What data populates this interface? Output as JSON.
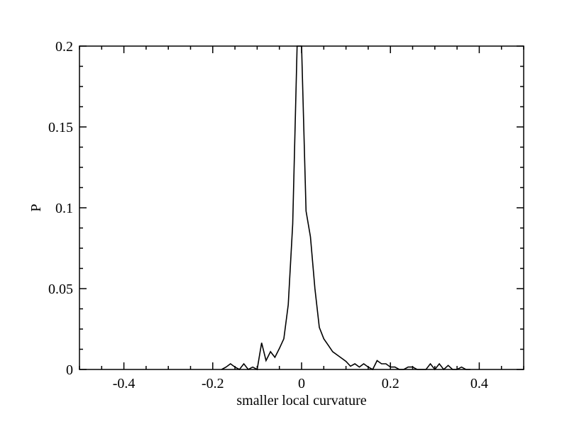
{
  "chart_data": {
    "type": "line",
    "title": "",
    "xlabel": "smaller local curvature",
    "ylabel": "P",
    "xlim": [
      -0.5,
      0.5
    ],
    "ylim": [
      0,
      0.2
    ],
    "x_ticks": [
      -0.4,
      -0.2,
      0,
      0.2,
      0.4
    ],
    "x_tick_labels": [
      "-0.4",
      "-0.2",
      "0",
      "0.2",
      "0.4"
    ],
    "y_ticks": [
      0,
      0.05,
      0.1,
      0.15,
      0.2
    ],
    "y_tick_labels": [
      "0",
      "0.05",
      "0.1",
      "0.15",
      "0.2"
    ],
    "grid": false,
    "legend": "none",
    "series": [
      {
        "color": "#000000",
        "x": [
          -0.18,
          -0.17,
          -0.16,
          -0.15,
          -0.14,
          -0.13,
          -0.12,
          -0.11,
          -0.1,
          -0.09,
          -0.08,
          -0.07,
          -0.06,
          -0.05,
          -0.04,
          -0.03,
          -0.02,
          -0.01,
          0.0,
          0.01,
          0.02,
          0.03,
          0.04,
          0.05,
          0.06,
          0.07,
          0.08,
          0.09,
          0.1,
          0.11,
          0.12,
          0.13,
          0.14,
          0.15,
          0.16,
          0.17,
          0.18,
          0.19,
          0.2,
          0.21,
          0.22,
          0.23,
          0.24,
          0.25,
          0.26,
          0.27,
          0.28,
          0.29,
          0.3,
          0.31,
          0.32,
          0.33,
          0.34,
          0.35,
          0.36,
          0.37,
          0.38
        ],
        "y": [
          0,
          0.0015,
          0.0035,
          0.0015,
          0,
          0.0035,
          0,
          0.0015,
          0,
          0.0165,
          0.0055,
          0.011,
          0.0075,
          0.013,
          0.019,
          0.04,
          0.09,
          0.2,
          0.2,
          0.098,
          0.082,
          0.05,
          0.026,
          0.019,
          0.015,
          0.011,
          0.009,
          0.007,
          0.005,
          0.002,
          0.0035,
          0.0015,
          0.0035,
          0.0015,
          0,
          0.0055,
          0.0035,
          0.0035,
          0.0015,
          0.0015,
          0,
          0,
          0.0015,
          0.0015,
          0,
          0,
          0,
          0.0035,
          0,
          0.0035,
          0,
          0.0025,
          0,
          0,
          0.0015,
          0,
          0
        ]
      }
    ]
  }
}
